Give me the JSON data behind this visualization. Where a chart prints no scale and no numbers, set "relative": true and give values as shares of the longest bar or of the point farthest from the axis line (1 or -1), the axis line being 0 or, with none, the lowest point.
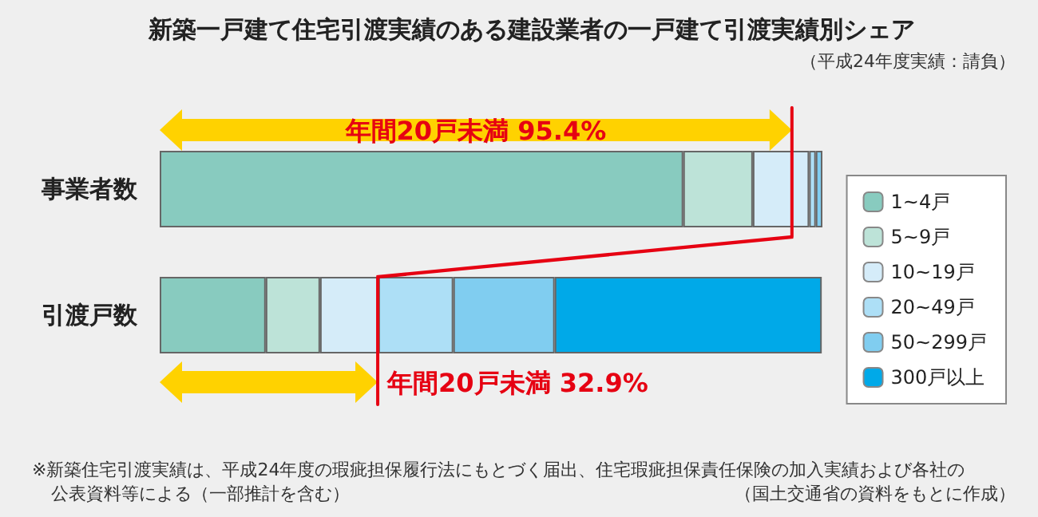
{
  "chart_data": {
    "type": "bar",
    "orientation": "horizontal",
    "stacked": true,
    "relative": true,
    "title": "新築一戸建て住宅引渡実績のある建設業者の一戸建て引渡実績別シェア",
    "subtitle": "（平成24年度実績：請負）",
    "categories": [
      "事業者数",
      "引渡戸数"
    ],
    "series": [
      {
        "name": "1~4戸",
        "color": "#88cbbf",
        "values": [
          0.79,
          0.16
        ]
      },
      {
        "name": "5~9戸",
        "color": "#bde3d8",
        "values": [
          0.105,
          0.082
        ]
      },
      {
        "name": "10~19戸",
        "color": "#d5ecf9",
        "values": [
          0.085,
          0.088
        ]
      },
      {
        "name": "20~49戸",
        "color": "#addff6",
        "values": [
          0.01,
          0.113
        ]
      },
      {
        "name": "50~299戸",
        "color": "#80cdf0",
        "values": [
          0.01,
          0.153
        ]
      },
      {
        "name": "300戸以上",
        "color": "#00a9e8",
        "values": [
          0,
          0.403
        ]
      }
    ],
    "legend": "right",
    "ref_lines": [
      {
        "axis": "x",
        "value": 0.954,
        "label": "年間20戸未満 95.4%",
        "color": "#e60012"
      },
      {
        "axis": "x",
        "value": 0.329,
        "label": "年間20戸未満 32.9%",
        "color": "#e60012"
      }
    ],
    "annotations": [
      "※新築住宅引渡実績は、平成24年度の瑕疵担保履行法にもとづく届出、住宅瑕疵担保責任保険の加入実績および各社の公表資料等による（一部推計を含む）",
      "（国土交通省の資料をもとに作成）"
    ]
  }
}
